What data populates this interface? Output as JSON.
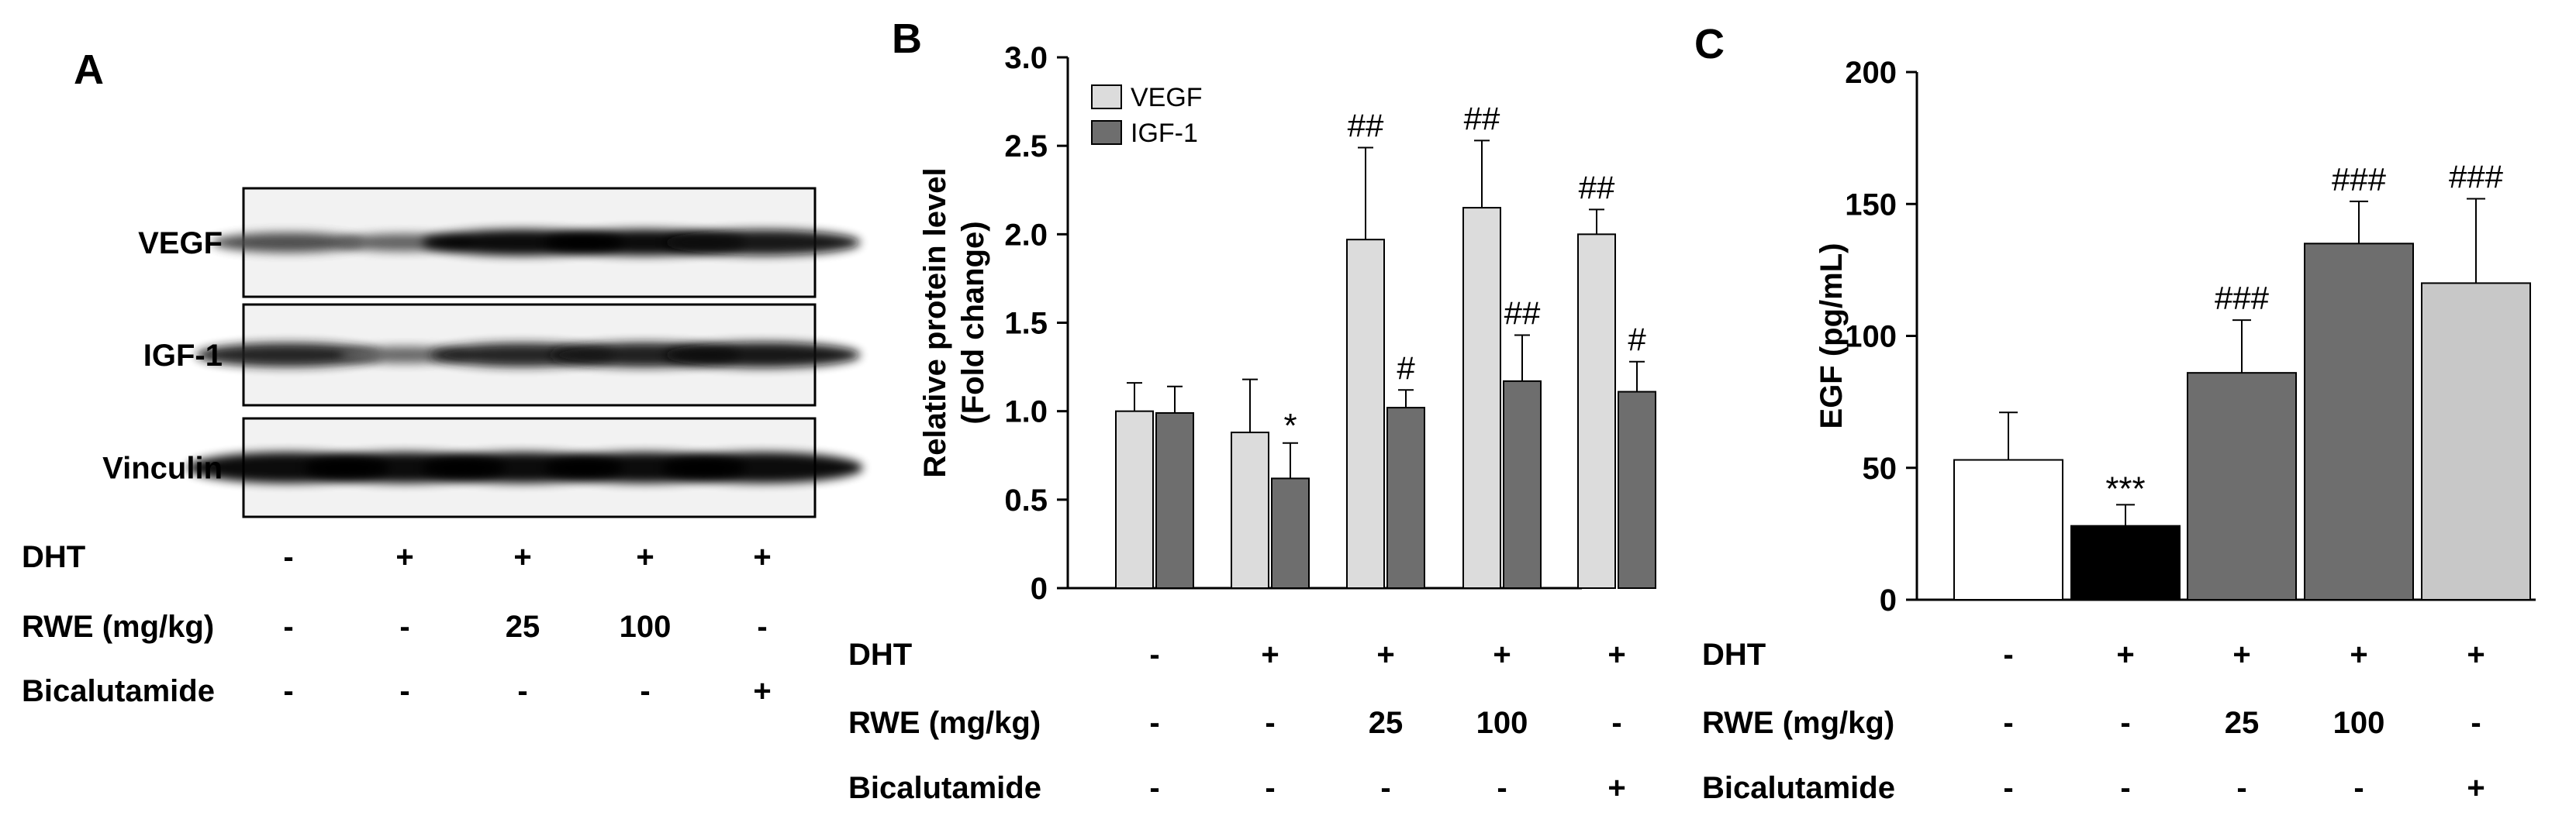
{
  "panels": {
    "A": {
      "label": "A",
      "blot_rows": [
        "VEGF",
        "IGF-1",
        "Vinculin"
      ],
      "band_intensity": {
        "VEGF": [
          0.55,
          0.4,
          1.0,
          1.0,
          0.95
        ],
        "IGF-1": [
          0.85,
          0.35,
          0.85,
          0.9,
          0.95
        ],
        "Vinculin": [
          1.0,
          1.0,
          1.0,
          1.0,
          1.0
        ]
      },
      "conditions": [
        {
          "label": "DHT",
          "values": [
            "-",
            "+",
            "+",
            "+",
            "+"
          ]
        },
        {
          "label": "RWE (mg/kg)",
          "values": [
            "-",
            "-",
            "25",
            "100",
            "-"
          ]
        },
        {
          "label": "Bicalutamide",
          "values": [
            "-",
            "-",
            "-",
            "-",
            "+"
          ]
        }
      ]
    },
    "B": {
      "label": "B"
    },
    "C": {
      "label": "C"
    }
  },
  "colors": {
    "vegf": "#dcdcdc",
    "igf1": "#6e6e6e",
    "c_group1": "#ffffff",
    "c_group2": "#000000",
    "c_group3": "#6e6e6e",
    "c_group4": "#6e6e6e",
    "c_group5": "#c8c8c8"
  },
  "chart_data": [
    {
      "panel": "B",
      "type": "bar",
      "ylabel_line1": "Relative protein level",
      "ylabel_line2": "(Fold change)",
      "ylim": [
        0,
        3.0
      ],
      "yticks": [
        "0",
        "0.5",
        "1.0",
        "1.5",
        "2.0",
        "2.5",
        "3.0"
      ],
      "ytick_values": [
        0,
        0.5,
        1.0,
        1.5,
        2.0,
        2.5,
        3.0
      ],
      "groups": 5,
      "legend_position": "top-left",
      "series": [
        {
          "name": "VEGF",
          "values": [
            1.0,
            0.88,
            1.97,
            2.15,
            2.0
          ],
          "errors": [
            0.16,
            0.3,
            0.52,
            0.38,
            0.14
          ],
          "annotations": [
            "",
            "",
            "##",
            "##",
            "##"
          ]
        },
        {
          "name": "IGF-1",
          "values": [
            0.99,
            0.62,
            1.02,
            1.17,
            1.11
          ],
          "errors": [
            0.15,
            0.2,
            0.1,
            0.26,
            0.17
          ],
          "annotations": [
            "",
            "*",
            "#",
            "##",
            "#"
          ]
        }
      ],
      "conditions": [
        {
          "label": "DHT",
          "values": [
            "-",
            "+",
            "+",
            "+",
            "+"
          ]
        },
        {
          "label": "RWE (mg/kg)",
          "values": [
            "-",
            "-",
            "25",
            "100",
            "-"
          ]
        },
        {
          "label": "Bicalutamide",
          "values": [
            "-",
            "-",
            "-",
            "-",
            "+"
          ]
        }
      ]
    },
    {
      "panel": "C",
      "type": "bar",
      "ylabel": "EGF (pg/mL)",
      "ylim": [
        0,
        200
      ],
      "yticks": [
        "0",
        "50",
        "100",
        "150",
        "200"
      ],
      "ytick_values": [
        0,
        50,
        100,
        150,
        200
      ],
      "values": [
        53,
        28,
        86,
        135,
        120
      ],
      "errors": [
        18,
        8,
        20,
        16,
        32
      ],
      "annotations": [
        "",
        "***",
        "###",
        "###",
        "###"
      ],
      "conditions": [
        {
          "label": "DHT",
          "values": [
            "-",
            "+",
            "+",
            "+",
            "+"
          ]
        },
        {
          "label": "RWE (mg/kg)",
          "values": [
            "-",
            "-",
            "25",
            "100",
            "-"
          ]
        },
        {
          "label": "Bicalutamide",
          "values": [
            "-",
            "-",
            "-",
            "-",
            "+"
          ]
        }
      ]
    }
  ]
}
